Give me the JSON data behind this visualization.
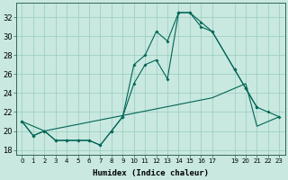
{
  "xlabel": "Humidex (Indice chaleur)",
  "background_color": "#c8e8e0",
  "grid_color": "#99ccbb",
  "line_color": "#006655",
  "xlim": [
    -0.5,
    23.5
  ],
  "ylim": [
    17.5,
    33.5
  ],
  "yticks": [
    18,
    20,
    22,
    24,
    26,
    28,
    30,
    32
  ],
  "xticks": [
    0,
    1,
    2,
    3,
    4,
    5,
    6,
    7,
    8,
    9,
    10,
    11,
    12,
    13,
    14,
    15,
    16,
    17,
    19,
    20,
    21,
    22,
    23
  ],
  "xtick_labels": [
    "0",
    "1",
    "2",
    "3",
    "4",
    "5",
    "6",
    "7",
    "8",
    "9",
    "10",
    "11",
    "12",
    "13",
    "14",
    "15",
    "16",
    "17",
    "19",
    "20",
    "21",
    "22",
    "23"
  ],
  "line_top_x": [
    0,
    1,
    2,
    3,
    4,
    5,
    6,
    7,
    8,
    9,
    10,
    11,
    12,
    13,
    14,
    15,
    16,
    17,
    19,
    20,
    21,
    22,
    23
  ],
  "line_top_y": [
    21,
    19.5,
    20,
    19,
    19,
    19,
    19,
    18.5,
    20,
    21.5,
    27,
    28,
    30.5,
    29.5,
    32.5,
    32.5,
    31.5,
    30.5,
    26.5,
    24.5,
    22.5,
    22,
    21.5
  ],
  "line_mid_x": [
    0,
    1,
    2,
    3,
    4,
    5,
    6,
    7,
    8,
    9,
    10,
    11,
    12,
    13,
    14,
    15,
    16,
    17,
    19,
    20,
    21
  ],
  "line_mid_y": [
    21,
    19.5,
    20,
    19,
    19,
    19,
    19,
    18.5,
    20,
    21.5,
    25,
    27,
    27.5,
    25.5,
    32.5,
    32.5,
    31,
    30.5,
    26.5,
    24.5,
    22.5
  ],
  "line_bot_x": [
    0,
    2,
    17,
    19,
    20,
    21,
    22,
    23
  ],
  "line_bot_y": [
    21,
    20,
    23.5,
    24.5,
    25,
    20.5,
    21,
    21.5
  ]
}
